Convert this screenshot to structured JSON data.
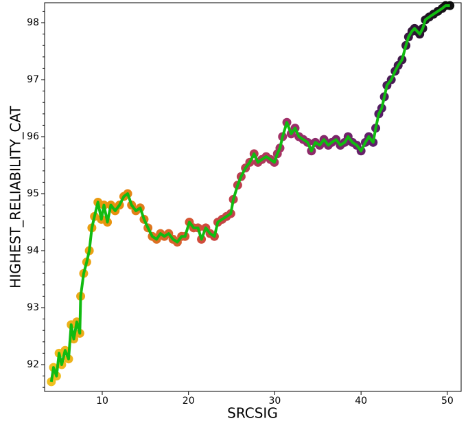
{
  "chart_data": {
    "type": "line",
    "x_label": "SRCSIG",
    "y_label": "HIGHEST_RELIABILITY_CAT",
    "x": [
      4.1,
      4.35,
      4.7,
      5.0,
      5.3,
      5.7,
      6.1,
      6.4,
      6.7,
      7.05,
      7.4,
      7.5,
      7.85,
      8.2,
      8.5,
      8.8,
      9.1,
      9.5,
      9.9,
      10.2,
      10.6,
      11.0,
      11.5,
      12.0,
      12.5,
      12.95,
      13.4,
      13.9,
      14.4,
      14.85,
      15.3,
      15.8,
      16.3,
      16.75,
      17.2,
      17.7,
      18.2,
      18.7,
      19.2,
      19.6,
      20.1,
      20.6,
      21.1,
      21.5,
      22.0,
      22.5,
      23.0,
      23.4,
      23.9,
      24.4,
      24.9,
      25.2,
      25.7,
      26.1,
      26.6,
      27.1,
      27.6,
      28.05,
      28.5,
      29.0,
      29.5,
      29.95,
      30.3,
      30.6,
      30.9,
      31.4,
      31.9,
      32.35,
      32.8,
      33.3,
      33.8,
      34.25,
      34.7,
      35.2,
      35.7,
      36.2,
      36.6,
      37.1,
      37.6,
      38.1,
      38.5,
      39.0,
      39.5,
      40.0,
      40.5,
      40.9,
      41.4,
      41.7,
      42.05,
      42.4,
      42.7,
      43.0,
      43.5,
      43.95,
      44.3,
      44.75,
      45.2,
      45.5,
      45.9,
      46.2,
      46.5,
      46.8,
      47.15,
      47.45,
      47.9,
      48.4,
      48.9,
      49.4,
      49.8,
      50.3
    ],
    "series": [
      {
        "color": "#11bb11",
        "marker_colormap": [
          "#f0c020",
          "#e8900c",
          "#d04a3c",
          "#a0306a",
          "#5a1e6a",
          "#101010"
        ],
        "values": [
          91.7,
          91.95,
          91.8,
          92.2,
          92.0,
          92.25,
          92.1,
          92.7,
          92.45,
          92.75,
          92.55,
          93.2,
          93.6,
          93.8,
          94.0,
          94.4,
          94.6,
          94.85,
          94.55,
          94.8,
          94.5,
          94.8,
          94.7,
          94.8,
          94.95,
          95.0,
          94.8,
          94.7,
          94.75,
          94.55,
          94.4,
          94.25,
          94.2,
          94.3,
          94.25,
          94.3,
          94.2,
          94.15,
          94.25,
          94.25,
          94.5,
          94.4,
          94.4,
          94.2,
          94.4,
          94.3,
          94.25,
          94.5,
          94.55,
          94.6,
          94.65,
          94.9,
          95.15,
          95.3,
          95.45,
          95.55,
          95.7,
          95.55,
          95.6,
          95.65,
          95.6,
          95.55,
          95.7,
          95.8,
          96.0,
          96.25,
          96.05,
          96.15,
          96.0,
          95.95,
          95.9,
          95.75,
          95.9,
          95.85,
          95.95,
          95.85,
          95.9,
          95.95,
          95.85,
          95.9,
          96.0,
          95.9,
          95.85,
          95.75,
          95.9,
          96.0,
          95.9,
          96.15,
          96.4,
          96.5,
          96.7,
          96.9,
          97.0,
          97.15,
          97.25,
          97.35,
          97.6,
          97.75,
          97.85,
          97.9,
          97.85,
          97.8,
          97.9,
          98.05,
          98.1,
          98.15,
          98.2,
          98.25,
          98.3,
          98.3
        ]
      }
    ],
    "xlim": [
      3.32,
      51.6
    ],
    "ylim": [
      91.53,
      98.35
    ],
    "xticks": [
      10,
      20,
      30,
      40,
      50
    ],
    "yticks": [
      92,
      93,
      94,
      95,
      96,
      97,
      98
    ],
    "y_minor_step": 0.2
  }
}
